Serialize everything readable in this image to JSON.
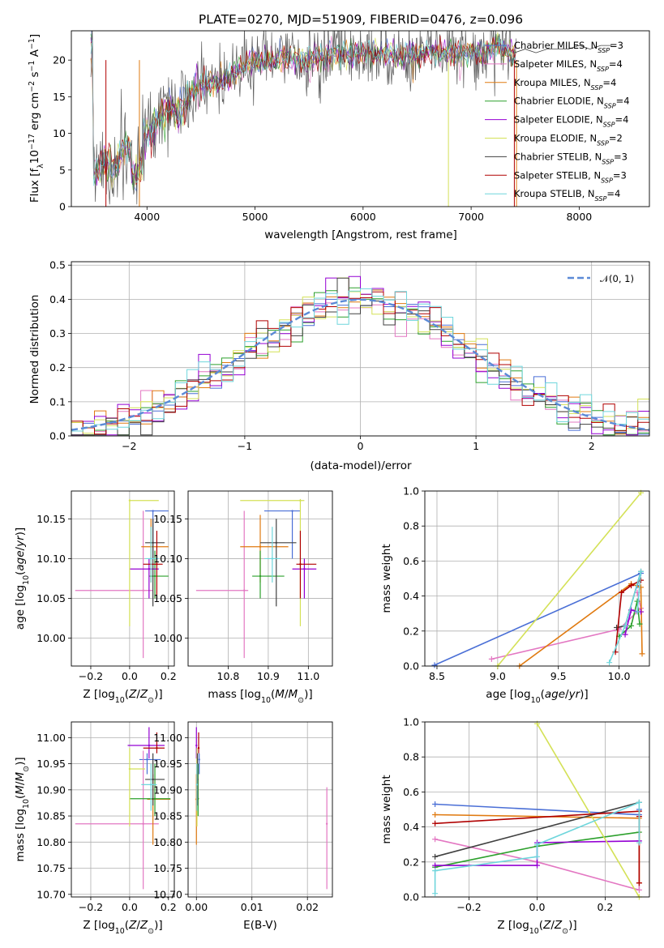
{
  "chart_data": [
    {
      "type": "line",
      "title": "PLATE=0270, MJD=51909, FIBERID=0476, z=0.096",
      "xlabel": "wavelength [Angstrom, rest frame]",
      "ylabel": "Flux [f_λ10^-17 erg cm^-2 s^-1 A^-1]",
      "xlim": [
        3300,
        8650
      ],
      "ylim": [
        0,
        24
      ],
      "xticks": [
        "4000",
        "5000",
        "6000",
        "7000",
        "8000"
      ],
      "yticks": [
        "0",
        "5",
        "10",
        "15",
        "20"
      ],
      "legend": "right",
      "series": [
        {
          "name": "Chabrier MILES, N_SSP=3",
          "color": "#4a6fd6"
        },
        {
          "name": "Salpeter MILES, N_SSP=4",
          "color": "#e377c2"
        },
        {
          "name": "Kroupa MILES, N_SSP=4",
          "color": "#e07a10"
        },
        {
          "name": "Chabrier ELODIE, N_SSP=4",
          "color": "#2ca02c"
        },
        {
          "name": "Salpeter ELODIE, N_SSP=4",
          "color": "#9400d3"
        },
        {
          "name": "Kroupa ELODIE, N_SSP=2",
          "color": "#d4e157"
        },
        {
          "name": "Chabrier STELIB, N_SSP=3",
          "color": "#404040"
        },
        {
          "name": "Salpeter STELIB, N_SSP=3",
          "color": "#b00000"
        },
        {
          "name": "Kroupa STELIB, N_SSP=4",
          "color": "#6fd6dc"
        }
      ],
      "envelope": {
        "x": [
          3500,
          3600,
          3700,
          3800,
          3900,
          4000,
          4100,
          4200,
          4300,
          4400,
          4500,
          4600,
          4700,
          4800,
          4900,
          5000,
          5100,
          5200,
          5300,
          5400,
          5500,
          5600,
          5700,
          5800,
          5900,
          6000,
          6100,
          6200,
          6300,
          6400,
          6500,
          6600,
          6700,
          6800,
          6900,
          7000,
          7100,
          7200,
          7300,
          7400
        ],
        "y": [
          5.0,
          6.5,
          5.0,
          8.5,
          7.0,
          10.0,
          11.5,
          13.5,
          12.5,
          15.5,
          16.5,
          17.0,
          17.0,
          18.5,
          19.0,
          20.0,
          19.5,
          20.0,
          20.0,
          20.0,
          20.0,
          20.5,
          20.5,
          21.0,
          21.0,
          21.0,
          21.0,
          21.0,
          20.5,
          20.5,
          20.5,
          21.0,
          21.0,
          21.0,
          21.0,
          21.5,
          21.0,
          21.5,
          21.5,
          21.0
        ]
      },
      "extension": {
        "x": [
          7400,
          7500,
          7600,
          7700,
          7800,
          7900,
          8000,
          8100,
          8200,
          8300
        ],
        "y": [
          21.0,
          21.5,
          21.0,
          21.5,
          21.5,
          21.5,
          22.0,
          21.5,
          22.0,
          22.0
        ]
      },
      "drops": [
        {
          "x": 3620,
          "series": 7
        },
        {
          "x": 3930,
          "series": 2
        },
        {
          "x": 6790,
          "series": 5
        },
        {
          "x": 7400,
          "series": 7
        },
        {
          "x": 7420,
          "series": 2
        }
      ]
    },
    {
      "type": "bar",
      "xlabel": "(data-model)/error",
      "ylabel": "Normed distribution",
      "xlim": [
        -2.5,
        2.5
      ],
      "ylim": [
        0,
        0.51
      ],
      "xticks": [
        "−2",
        "−1",
        "0",
        "1",
        "2"
      ],
      "yticks": [
        "0.0",
        "0.1",
        "0.2",
        "0.3",
        "0.4",
        "0.5"
      ],
      "grid": true,
      "legend": "top-right",
      "bin_width": 0.1,
      "reference": {
        "name": "𝒩(0, 1)",
        "color": "#5b8ad6"
      }
    },
    {
      "type": "scatter",
      "xlabel": "Z [log10(Z/Z⊙)]",
      "ylabel": "age [log10(age/yr)]",
      "xlim": [
        -0.3,
        0.23
      ],
      "ylim": [
        9.965,
        10.185
      ],
      "xticks": [
        "−0.2",
        "0.0",
        "0.2"
      ],
      "yticks": [
        "10.00",
        "10.05",
        "10.10",
        "10.15"
      ],
      "grid": true,
      "points": [
        {
          "c": "#4a6fd6",
          "x": 0.12,
          "xe": [
            0.08,
            0.2
          ],
          "y": 10.16,
          "ye": [
            10.1,
            10.16
          ]
        },
        {
          "c": "#e377c2",
          "x": 0.07,
          "xe": [
            -0.28,
            0.12
          ],
          "y": 10.06,
          "ye": [
            9.975,
            10.16
          ]
        },
        {
          "c": "#e07a10",
          "x": 0.11,
          "xe": [
            0.06,
            0.2
          ],
          "y": 10.115,
          "ye": [
            10.07,
            10.15
          ]
        },
        {
          "c": "#2ca02c",
          "x": 0.13,
          "xe": [
            0.1,
            0.2
          ],
          "y": 10.078,
          "ye": [
            10.05,
            10.11
          ]
        },
        {
          "c": "#9400d3",
          "x": 0.1,
          "xe": [
            0.0,
            0.15
          ],
          "y": 10.087,
          "ye": [
            10.05,
            10.1
          ]
        },
        {
          "c": "#d4e157",
          "x": 0.0,
          "xe": [
            0.0,
            0.15
          ],
          "y": 10.173,
          "ye": [
            10.015,
            10.175
          ]
        },
        {
          "c": "#404040",
          "x": 0.12,
          "xe": [
            0.08,
            0.18
          ],
          "y": 10.12,
          "ye": [
            10.04,
            10.15
          ]
        },
        {
          "c": "#b00000",
          "x": 0.14,
          "xe": [
            0.07,
            0.17
          ],
          "y": 10.093,
          "ye": [
            10.05,
            10.135
          ]
        },
        {
          "c": "#6fd6dc",
          "x": 0.11,
          "xe": [
            0.08,
            0.15
          ],
          "y": 10.1,
          "ye": [
            10.07,
            10.14
          ]
        }
      ]
    },
    {
      "type": "scatter",
      "xlabel": "mass [log10(M/M⊙)]",
      "xlim": [
        10.7,
        11.06
      ],
      "ylim": [
        9.965,
        10.185
      ],
      "xticks": [
        "10.8",
        "10.9",
        "11.0"
      ],
      "yticks": [
        "10.00",
        "10.05",
        "10.10",
        "10.15"
      ],
      "grid": true,
      "points": [
        {
          "c": "#4a6fd6",
          "x": 10.96,
          "xe": [
            10.89,
            10.98
          ],
          "y": 10.16,
          "ye": [
            10.1,
            10.16
          ]
        },
        {
          "c": "#e377c2",
          "x": 10.84,
          "xe": [
            10.72,
            10.85
          ],
          "y": 10.06,
          "ye": [
            9.975,
            10.16
          ]
        },
        {
          "c": "#e07a10",
          "x": 10.88,
          "xe": [
            10.83,
            10.95
          ],
          "y": 10.115,
          "ye": [
            10.07,
            10.155
          ]
        },
        {
          "c": "#2ca02c",
          "x": 10.88,
          "xe": [
            10.86,
            10.94
          ],
          "y": 10.078,
          "ye": [
            10.05,
            10.11
          ]
        },
        {
          "c": "#9400d3",
          "x": 10.99,
          "xe": [
            10.96,
            11.02
          ],
          "y": 10.087,
          "ye": [
            10.05,
            10.1
          ]
        },
        {
          "c": "#d4e157",
          "x": 10.98,
          "xe": [
            10.83,
            10.99
          ],
          "y": 10.173,
          "ye": [
            10.015,
            10.175
          ]
        },
        {
          "c": "#404040",
          "x": 10.92,
          "xe": [
            10.88,
            10.97
          ],
          "y": 10.12,
          "ye": [
            10.04,
            10.15
          ]
        },
        {
          "c": "#b00000",
          "x": 10.98,
          "xe": [
            10.97,
            11.02
          ],
          "y": 10.093,
          "ye": [
            10.05,
            10.135
          ]
        },
        {
          "c": "#6fd6dc",
          "x": 10.91,
          "xe": [
            10.89,
            10.93
          ],
          "y": 10.1,
          "ye": [
            10.07,
            10.14
          ]
        }
      ]
    },
    {
      "type": "line",
      "xlabel": "age [log10(age/yr)]",
      "ylabel": "mass weight",
      "xlim": [
        8.4,
        10.25
      ],
      "ylim": [
        0,
        1.0
      ],
      "xticks": [
        "8.5",
        "9.0",
        "9.5",
        "10.0"
      ],
      "yticks": [
        "0.0",
        "0.2",
        "0.4",
        "0.6",
        "0.8",
        "1.0"
      ],
      "grid": true,
      "series": [
        {
          "c": "#4a6fd6",
          "x": [
            8.48,
            10.18,
            10.15
          ],
          "y": [
            0.005,
            0.53,
            0.46
          ]
        },
        {
          "c": "#e377c2",
          "x": [
            8.95,
            10.0,
            10.18,
            10.15
          ],
          "y": [
            0.04,
            0.21,
            0.33,
            0.42
          ]
        },
        {
          "c": "#e07a10",
          "x": [
            9.18,
            10.1,
            10.18,
            10.19
          ],
          "y": [
            0.0,
            0.47,
            0.45,
            0.07
          ]
        },
        {
          "c": "#2ca02c",
          "x": [
            10.0,
            10.1,
            10.15,
            10.17
          ],
          "y": [
            0.17,
            0.23,
            0.37,
            0.24
          ]
        },
        {
          "c": "#9400d3",
          "x": [
            10.05,
            10.1,
            10.15,
            10.18
          ],
          "y": [
            0.18,
            0.32,
            0.31,
            0.31
          ]
        },
        {
          "c": "#d4e157",
          "x": [
            9.0,
            10.18
          ],
          "y": [
            0.0,
            0.99
          ]
        },
        {
          "c": "#404040",
          "x": [
            9.98,
            10.05,
            10.18
          ],
          "y": [
            0.22,
            0.23,
            0.54
          ]
        },
        {
          "c": "#b00000",
          "x": [
            9.97,
            10.02,
            10.1,
            10.18
          ],
          "y": [
            0.08,
            0.42,
            0.46,
            0.49
          ]
        },
        {
          "c": "#6fd6dc",
          "x": [
            9.92,
            10.05,
            10.18,
            10.15
          ],
          "y": [
            0.02,
            0.23,
            0.54,
            0.31
          ]
        }
      ]
    },
    {
      "type": "scatter",
      "xlabel": "Z [log10(Z/Z⊙)]",
      "ylabel": "mass [log10(M/M⊙)]",
      "xlim": [
        -0.3,
        0.23
      ],
      "ylim": [
        10.695,
        11.03
      ],
      "xticks": [
        "−0.2",
        "0.0",
        "0.2"
      ],
      "yticks": [
        "10.70",
        "10.75",
        "10.80",
        "10.85",
        "10.90",
        "10.95",
        "11.00"
      ],
      "grid": true,
      "points": [
        {
          "c": "#4a6fd6",
          "x": 0.09,
          "xe": [
            0.05,
            0.16
          ],
          "y": 10.958,
          "ye": [
            10.93,
            10.97
          ]
        },
        {
          "c": "#e377c2",
          "x": 0.07,
          "xe": [
            -0.28,
            0.15
          ],
          "y": 10.835,
          "ye": [
            10.71,
            10.975
          ]
        },
        {
          "c": "#e07a10",
          "x": 0.12,
          "xe": [
            0.09,
            0.21
          ],
          "y": 10.882,
          "ye": [
            10.795,
            10.93
          ]
        },
        {
          "c": "#2ca02c",
          "x": 0.13,
          "xe": [
            0.0,
            0.21
          ],
          "y": 10.883,
          "ye": [
            10.85,
            10.95
          ]
        },
        {
          "c": "#9400d3",
          "x": 0.1,
          "xe": [
            -0.01,
            0.18
          ],
          "y": 10.985,
          "ye": [
            10.96,
            11.02
          ]
        },
        {
          "c": "#d4e157",
          "x": 0.0,
          "xe": [
            0.0,
            0.08
          ],
          "y": 10.94,
          "ye": [
            10.83,
            10.98
          ]
        },
        {
          "c": "#404040",
          "x": 0.12,
          "xe": [
            0.08,
            0.18
          ],
          "y": 10.92,
          "ye": [
            10.87,
            10.97
          ]
        },
        {
          "c": "#b00000",
          "x": 0.14,
          "xe": [
            0.07,
            0.18
          ],
          "y": 10.98,
          "ye": [
            10.97,
            11.01
          ]
        },
        {
          "c": "#6fd6dc",
          "x": 0.11,
          "xe": [
            0.06,
            0.14
          ],
          "y": 10.91,
          "ye": [
            10.86,
            10.95
          ]
        }
      ]
    },
    {
      "type": "scatter",
      "xlabel": "E(B-V)",
      "xlim": [
        -0.0015,
        0.0245
      ],
      "ylim": [
        10.695,
        11.03
      ],
      "xticks": [
        "0.00",
        "0.01",
        "0.02"
      ],
      "yticks": [
        "10.70",
        "10.75",
        "10.80",
        "10.85",
        "10.90",
        "10.95",
        "11.00"
      ],
      "grid": true,
      "points": [
        {
          "c": "#4a6fd6",
          "x": 0.0005,
          "y": 10.958,
          "ye": [
            10.93,
            10.97
          ]
        },
        {
          "c": "#e377c2",
          "x": 0.0235,
          "y": 10.835,
          "ye": [
            10.71,
            10.905
          ]
        },
        {
          "c": "#e07a10",
          "x": 0.0,
          "y": 10.882,
          "ye": [
            10.795,
            10.93
          ]
        },
        {
          "c": "#2ca02c",
          "x": 0.0003,
          "y": 10.883,
          "ye": [
            10.85,
            10.95
          ]
        },
        {
          "c": "#9400d3",
          "x": 0.0,
          "y": 10.985,
          "ye": [
            10.96,
            11.02
          ]
        },
        {
          "c": "#d4e157",
          "x": 0.0001,
          "y": 10.94,
          "ye": [
            10.83,
            10.98
          ]
        },
        {
          "c": "#404040",
          "x": 0.0002,
          "y": 10.92,
          "ye": [
            10.87,
            10.97
          ]
        },
        {
          "c": "#b00000",
          "x": 0.0004,
          "y": 10.98,
          "ye": [
            10.97,
            11.01
          ]
        },
        {
          "c": "#6fd6dc",
          "x": 0.0001,
          "y": 10.91,
          "ye": [
            10.86,
            10.95
          ]
        }
      ]
    },
    {
      "type": "line",
      "xlabel": "Z [log10(Z/Z⊙)]",
      "ylabel": "mass weight",
      "xlim": [
        -0.33,
        0.33
      ],
      "ylim": [
        0,
        1.0
      ],
      "xticks": [
        "−0.2",
        "0.0",
        "0.2"
      ],
      "yticks": [
        "0.0",
        "0.2",
        "0.4",
        "0.6",
        "0.8",
        "1.0"
      ],
      "grid": true,
      "series": [
        {
          "c": "#4a6fd6",
          "x": [
            -0.3,
            0.3,
            0.3
          ],
          "y": [
            0.53,
            0.47,
            0.5
          ]
        },
        {
          "c": "#e377c2",
          "x": [
            -0.3,
            0.0,
            0.3,
            0.3
          ],
          "y": [
            0.33,
            0.2,
            0.04,
            0.08
          ]
        },
        {
          "c": "#e07a10",
          "x": [
            -0.3,
            0.3,
            0.3
          ],
          "y": [
            0.47,
            0.45,
            0.08
          ]
        },
        {
          "c": "#2ca02c",
          "x": [
            -0.3,
            0.0,
            0.3
          ],
          "y": [
            0.17,
            0.29,
            0.37
          ]
        },
        {
          "c": "#9400d3",
          "x": [
            -0.3,
            0.0,
            0.0,
            0.3
          ],
          "y": [
            0.18,
            0.18,
            0.31,
            0.32
          ]
        },
        {
          "c": "#d4e157",
          "x": [
            0.0,
            0.3
          ],
          "y": [
            0.99,
            0.0
          ]
        },
        {
          "c": "#404040",
          "x": [
            -0.3,
            0.3
          ],
          "y": [
            0.23,
            0.54
          ]
        },
        {
          "c": "#b00000",
          "x": [
            -0.3,
            0.3,
            0.3,
            0.3
          ],
          "y": [
            0.42,
            0.49,
            0.46,
            0.08
          ]
        },
        {
          "c": "#6fd6dc",
          "x": [
            -0.3,
            -0.3,
            0.0,
            0.0,
            0.3,
            0.3
          ],
          "y": [
            0.02,
            0.15,
            0.23,
            0.3,
            0.54,
            0.31
          ]
        }
      ]
    }
  ]
}
